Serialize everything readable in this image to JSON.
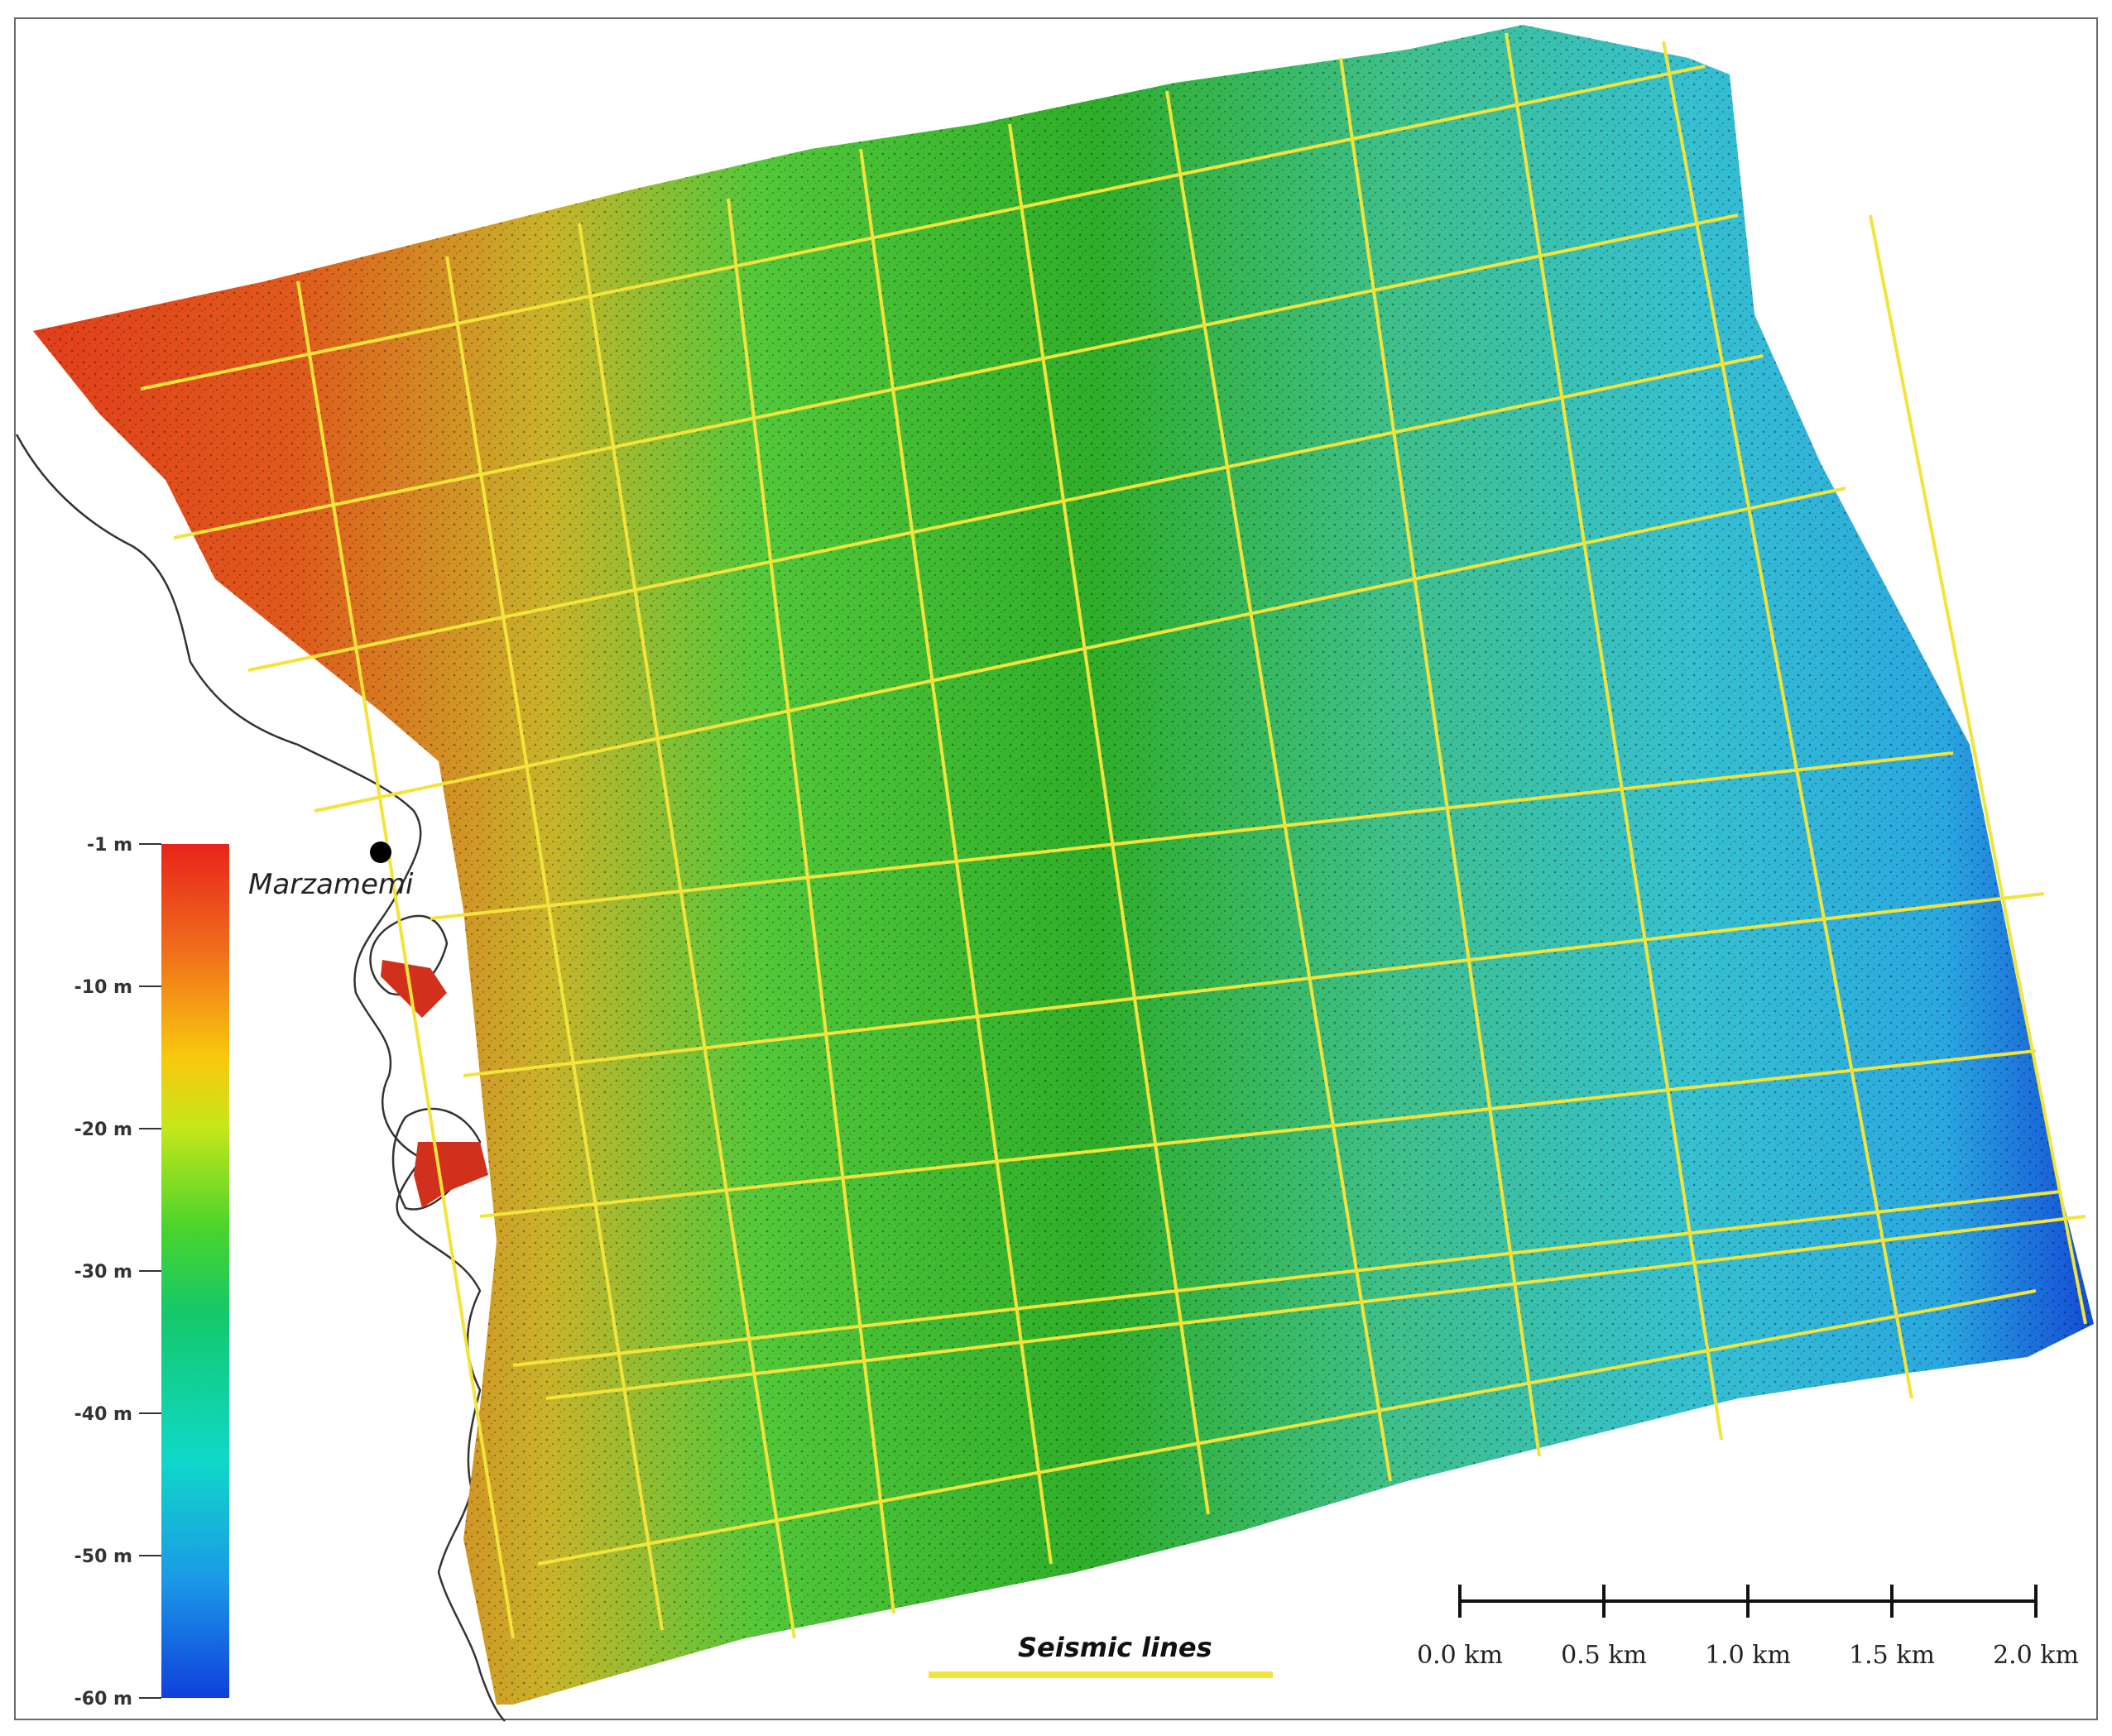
{
  "map": {
    "place_label": "Marzamemi",
    "colorbar": {
      "ticks": [
        "-1 m",
        "-10 m",
        "-20 m",
        "-30 m",
        "-40 m",
        "-50 m",
        "-60 m"
      ],
      "colors": [
        "#e8241c",
        "#f06a1c",
        "#f9c80e",
        "#c8e61a",
        "#4ad42c",
        "#14c86a",
        "#10d8c8",
        "#1a9ae6",
        "#1040dc"
      ]
    },
    "legend": {
      "label": "Seismic lines",
      "color": "#f2e43a"
    },
    "scale_bar": {
      "ticks": [
        "0.0 km",
        "0.5 km",
        "1.0 km",
        "1.5 km",
        "2.0 km"
      ]
    }
  }
}
